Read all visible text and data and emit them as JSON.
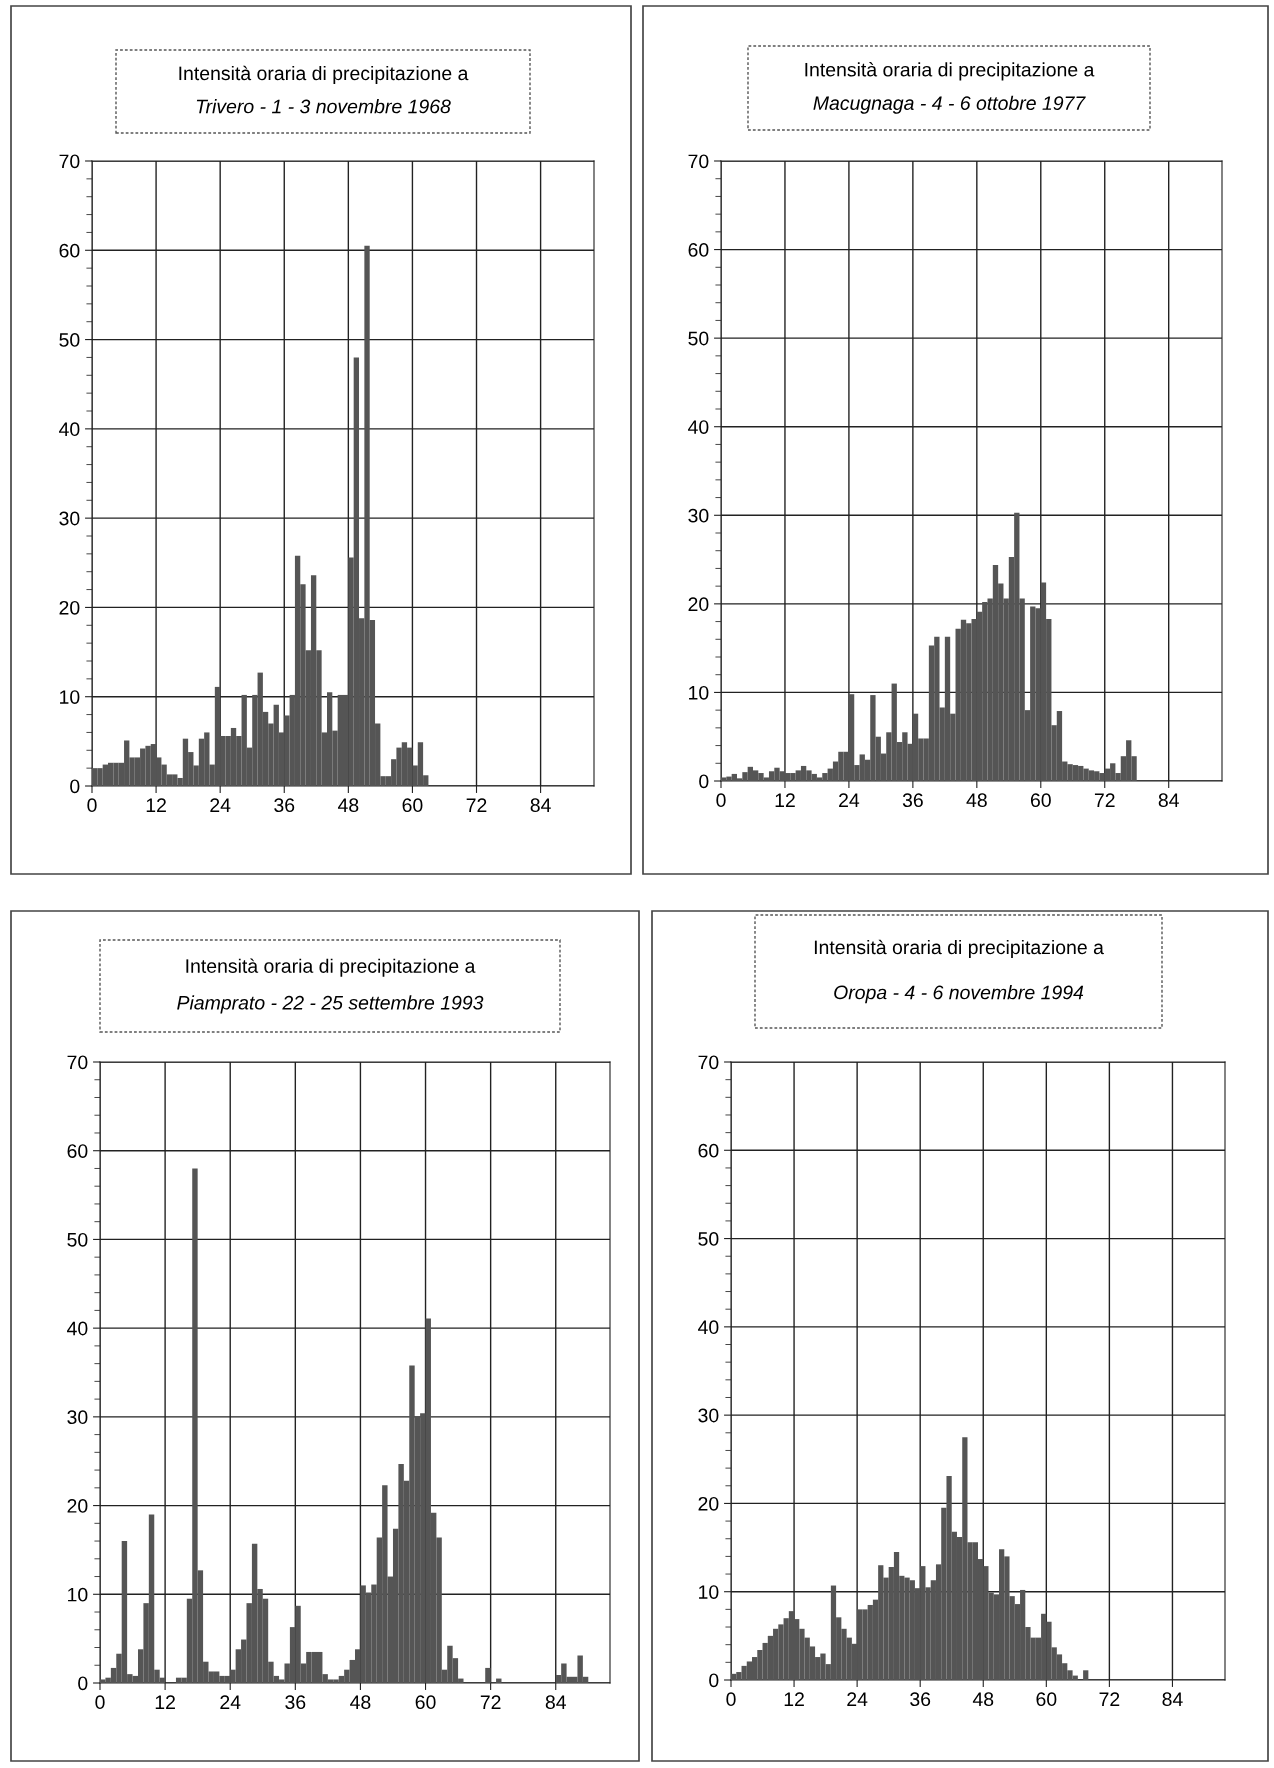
{
  "chart_data": [
    {
      "type": "histogram",
      "title": "Intensità oraria di precipitazione a",
      "subtitle": "Trivero - 1 - 3 novembre 1968",
      "color": "#555555",
      "xlim": [
        0,
        94
      ],
      "xticks": [
        0,
        12,
        24,
        36,
        48,
        60,
        72,
        84
      ],
      "ylim": [
        0,
        70
      ],
      "yticks": [
        0,
        10,
        20,
        30,
        40,
        50,
        60,
        70
      ],
      "grid": true,
      "bins": [
        0,
        1,
        2,
        3,
        4,
        5,
        6,
        7,
        8,
        9,
        10,
        11,
        12,
        13,
        14,
        15,
        16,
        17,
        18,
        19,
        20,
        21,
        22,
        23,
        24,
        25,
        26,
        27,
        28,
        29,
        30,
        31,
        32,
        33,
        34,
        35,
        36,
        37,
        38,
        39,
        40,
        41,
        42,
        43,
        44,
        45,
        46,
        47,
        48,
        49,
        50,
        51,
        52,
        53,
        54,
        55,
        56,
        57,
        58,
        59,
        60,
        61,
        62,
        63
      ],
      "values": [
        2,
        2,
        2.4,
        2.6,
        2.6,
        2.6,
        5.1,
        3.2,
        3.2,
        4.2,
        4.5,
        4.7,
        3.2,
        2.4,
        1.3,
        1.3,
        0.9,
        5.3,
        3.8,
        2.3,
        5.3,
        6,
        2.4,
        11.1,
        5.6,
        5.6,
        6.5,
        5.6,
        10.2,
        4.3,
        10.2,
        12.7,
        8.3,
        7,
        9.1,
        6,
        7.9,
        10.2,
        25.8,
        22.6,
        15.2,
        23.6,
        15.2,
        6,
        10.5,
        6.2,
        10.2,
        10.2,
        25.6,
        48,
        18.8,
        60.5,
        18.6,
        7,
        1.1,
        1.1,
        3,
        4.3,
        4.9,
        4.3,
        2.3,
        4.9,
        1.2
      ]
    },
    {
      "type": "histogram",
      "title": "Intensità oraria di precipitazione a",
      "subtitle": "Macugnaga - 4 - 6 ottobre 1977",
      "color": "#555555",
      "xlim": [
        0,
        94
      ],
      "xticks": [
        0,
        12,
        24,
        36,
        48,
        60,
        72,
        84
      ],
      "ylim": [
        0,
        70
      ],
      "yticks": [
        0,
        10,
        20,
        30,
        40,
        50,
        60,
        70
      ],
      "grid": true,
      "bins": [
        0,
        1,
        2,
        3,
        4,
        5,
        6,
        7,
        8,
        9,
        10,
        11,
        12,
        13,
        14,
        15,
        16,
        17,
        18,
        19,
        20,
        21,
        22,
        23,
        24,
        25,
        26,
        27,
        28,
        29,
        30,
        31,
        32,
        33,
        34,
        35,
        36,
        37,
        38,
        39,
        40,
        41,
        42,
        43,
        44,
        45,
        46,
        47,
        48,
        49,
        50,
        51,
        52,
        53,
        54,
        55,
        56,
        57,
        58,
        59,
        60,
        61,
        62,
        63,
        64,
        65,
        66,
        67,
        68,
        69,
        70,
        71,
        72,
        73,
        74,
        75,
        76,
        77,
        78
      ],
      "values": [
        0.4,
        0.5,
        0.8,
        0.3,
        1,
        1.6,
        1.2,
        0.9,
        0.4,
        1.1,
        1.5,
        1.1,
        0.9,
        0.9,
        1.2,
        1.7,
        1.2,
        0.8,
        0.4,
        0.9,
        1.4,
        2.2,
        3.3,
        3.3,
        9.8,
        1.8,
        3,
        2.4,
        9.7,
        5,
        3.1,
        5.5,
        11,
        4.4,
        5.5,
        4.2,
        7.6,
        4.8,
        4.8,
        15.3,
        16.3,
        8.3,
        16.3,
        7.6,
        17.2,
        18.2,
        17.8,
        18.3,
        19.1,
        20.2,
        20.6,
        24.4,
        22.3,
        20.6,
        25.3,
        30.3,
        20.6,
        8,
        19.7,
        19.5,
        22.4,
        18.3,
        6.3,
        7.9,
        2.2,
        1.9,
        1.8,
        1.7,
        1.4,
        1.2,
        1.1,
        0.9,
        1.4,
        2,
        0.9,
        2.8,
        4.6,
        2.8
      ]
    },
    {
      "type": "histogram",
      "title": "Intensità oraria di precipitazione a",
      "subtitle": "Piamprato - 22 - 25 settembre 1993",
      "color": "#555555",
      "xlim": [
        0,
        94
      ],
      "xticks": [
        0,
        12,
        24,
        36,
        48,
        60,
        72,
        84
      ],
      "ylim": [
        0,
        70
      ],
      "yticks": [
        0,
        10,
        20,
        30,
        40,
        50,
        60,
        70
      ],
      "grid": true,
      "bins": [
        0,
        1,
        2,
        3,
        4,
        5,
        6,
        7,
        8,
        9,
        10,
        11,
        12,
        13,
        14,
        15,
        16,
        17,
        18,
        19,
        20,
        21,
        22,
        23,
        24,
        25,
        26,
        27,
        28,
        29,
        30,
        31,
        32,
        33,
        34,
        35,
        36,
        37,
        38,
        39,
        40,
        41,
        42,
        43,
        44,
        45,
        46,
        47,
        48,
        49,
        50,
        51,
        52,
        53,
        54,
        55,
        56,
        57,
        58,
        59,
        60,
        61,
        62,
        63,
        64,
        65,
        66,
        67,
        68,
        69,
        70,
        71,
        72,
        73,
        74,
        75,
        76,
        77,
        78,
        79,
        80,
        81,
        82,
        83,
        84,
        85,
        86,
        87,
        88,
        89,
        90
      ],
      "values": [
        0.4,
        0.6,
        1.7,
        3.3,
        16,
        1,
        0.8,
        3.8,
        9,
        19,
        1.5,
        0.6,
        null,
        null,
        0.6,
        0.6,
        9.5,
        58,
        12.7,
        2.4,
        1.3,
        1.3,
        0.8,
        0.8,
        1.5,
        3.8,
        4.9,
        9,
        15.7,
        10.6,
        9.5,
        2.4,
        0.8,
        0.4,
        2.2,
        6.3,
        8.7,
        2.2,
        3.5,
        3.5,
        3.5,
        1,
        0.4,
        0.4,
        0.8,
        1.5,
        2.6,
        3.8,
        11,
        10.2,
        11.1,
        16.4,
        22.3,
        12,
        17.4,
        24.7,
        22.8,
        35.8,
        30,
        30.4,
        41.1,
        19.2,
        16.4,
        1.5,
        4.2,
        2.8,
        0.5,
        null,
        0,
        0,
        0,
        1.7,
        0,
        0.5,
        0,
        0,
        0,
        0,
        0,
        0,
        0,
        0,
        0,
        0,
        0.9,
        2.2,
        0.7,
        0.7,
        3.1,
        0.7
      ]
    },
    {
      "type": "histogram",
      "title": "Intensità oraria di precipitazione a",
      "subtitle": "Oropa - 4 - 6 novembre 1994",
      "color": "#555555",
      "xlim": [
        0,
        94
      ],
      "xticks": [
        0,
        12,
        24,
        36,
        48,
        60,
        72,
        84
      ],
      "ylim": [
        0,
        70
      ],
      "yticks": [
        0,
        10,
        20,
        30,
        40,
        50,
        60,
        70
      ],
      "grid": true,
      "bins": [
        0,
        1,
        2,
        3,
        4,
        5,
        6,
        7,
        8,
        9,
        10,
        11,
        12,
        13,
        14,
        15,
        16,
        17,
        18,
        19,
        20,
        21,
        22,
        23,
        24,
        25,
        26,
        27,
        28,
        29,
        30,
        31,
        32,
        33,
        34,
        35,
        36,
        37,
        38,
        39,
        40,
        41,
        42,
        43,
        44,
        45,
        46,
        47,
        48,
        49,
        50,
        51,
        52,
        53,
        54,
        55,
        56,
        57,
        58,
        59,
        60,
        61,
        62,
        63,
        64,
        65,
        66,
        67,
        68
      ],
      "values": [
        0.7,
        0.9,
        1.6,
        2.1,
        2.6,
        3.4,
        4.2,
        5,
        5.8,
        6.3,
        7,
        7.8,
        6.9,
        5.8,
        4.8,
        3.8,
        2.6,
        3,
        1.8,
        10.7,
        7.1,
        5.8,
        4.8,
        4.1,
        8,
        8,
        8.5,
        9.1,
        13,
        11.6,
        12.8,
        14.5,
        11.8,
        11.6,
        11.3,
        10.4,
        12.9,
        10.5,
        11.3,
        13.1,
        19.5,
        23.1,
        16.8,
        16.2,
        27.5,
        15.6,
        15.6,
        13.7,
        12.9,
        9.9,
        9.7,
        14.8,
        14,
        9.5,
        8.6,
        10.2,
        6,
        4.8,
        4.8,
        7.5,
        6.6,
        3.7,
        2.9,
        1.9,
        1.1,
        0.5,
        null,
        1.1
      ]
    }
  ]
}
